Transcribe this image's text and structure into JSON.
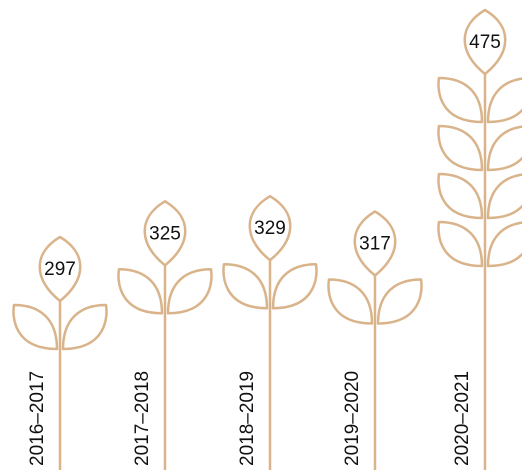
{
  "chart_data": {
    "type": "pictorial",
    "categories": [
      "2016–2017",
      "2017–2018",
      "2018–2019",
      "2019–2020",
      "2020–2021"
    ],
    "values": [
      297,
      325,
      329,
      317,
      475
    ],
    "color": "#d9b38a"
  }
}
